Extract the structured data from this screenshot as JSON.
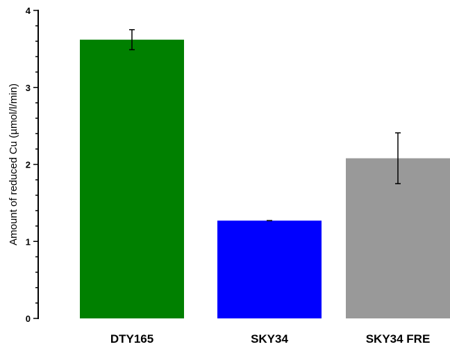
{
  "chart_data": {
    "type": "bar",
    "categories": [
      "DTY165",
      "SKY34",
      "SKY34 FRE"
    ],
    "values": [
      3.62,
      1.27,
      2.08
    ],
    "errors": [
      0.13,
      0.0,
      0.33
    ],
    "colors": [
      "#008000",
      "#0000ff",
      "#999999"
    ],
    "title": "",
    "xlabel": "",
    "ylabel": "Amount of reduced Cu (µmol/l/min)",
    "ylim": [
      0,
      4
    ],
    "yticks": [
      0,
      1,
      2,
      3,
      4
    ],
    "grid": false,
    "legend": "none"
  }
}
